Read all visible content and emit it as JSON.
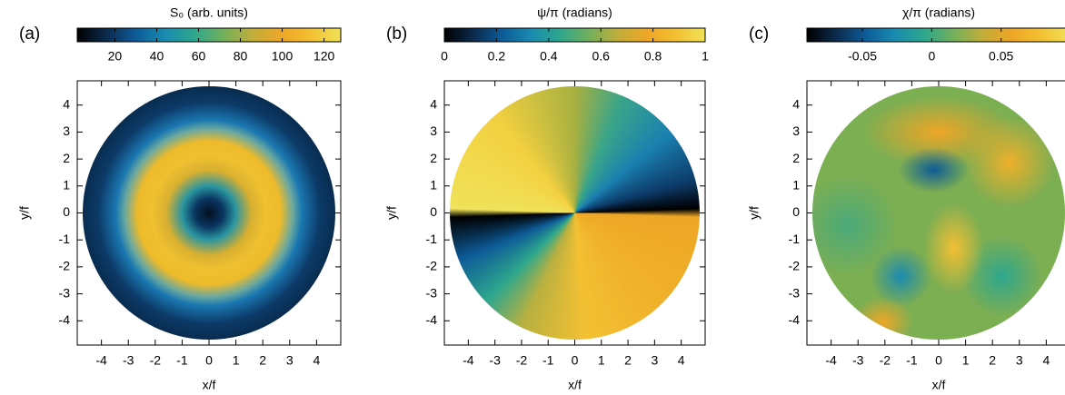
{
  "chart_data": [
    {
      "type": "heatmap",
      "image": "ring",
      "panel_label": "(a)",
      "colorbar_label": "S₀ (arb. units)",
      "clim": [
        2,
        128
      ],
      "cticks": [
        20,
        40,
        60,
        80,
        100,
        120
      ],
      "colormap": [
        "#000000",
        "#0b2a4c",
        "#0d5b97",
        "#1a8bb0",
        "#2ea78c",
        "#72b05c",
        "#c2ad3a",
        "#eea626",
        "#f3c033",
        "#f0e25a"
      ],
      "xlabel": "x/f",
      "ylabel": "y/f",
      "xlim": [
        -4.9,
        4.9
      ],
      "ylim": [
        -4.9,
        4.9
      ],
      "xticks": [
        -4,
        -3,
        -2,
        -1,
        0,
        1,
        2,
        3,
        4
      ],
      "yticks": [
        -4,
        -3,
        -2,
        -1,
        0,
        1,
        2,
        3,
        4
      ]
    },
    {
      "type": "heatmap",
      "image": "azimuth",
      "panel_label": "(b)",
      "colorbar_label": "ψ/π (radians)",
      "clim": [
        0,
        1
      ],
      "cticks": [
        0,
        0.2,
        0.4,
        0.6,
        0.8,
        1
      ],
      "colormap": [
        "#000000",
        "#0b2a4c",
        "#0d5b97",
        "#1a8bb0",
        "#2ea78c",
        "#72b05c",
        "#c2ad3a",
        "#eea626",
        "#f3c033",
        "#f0e25a"
      ],
      "xlabel": "x/f",
      "ylabel": "y/f",
      "xlim": [
        -4.9,
        4.9
      ],
      "ylim": [
        -4.9,
        4.9
      ],
      "xticks": [
        -4,
        -3,
        -2,
        -1,
        0,
        1,
        2,
        3,
        4
      ],
      "yticks": [
        -4,
        -3,
        -2,
        -1,
        0,
        1,
        2,
        3,
        4
      ]
    },
    {
      "type": "heatmap",
      "image": "patches",
      "panel_label": "(c)",
      "colorbar_label": "χ/π (radians)",
      "clim": [
        -0.09,
        0.1
      ],
      "cticks": [
        -0.05,
        0,
        0.05
      ],
      "colormap": [
        "#000000",
        "#0b2a4c",
        "#0d5b97",
        "#1a8bb0",
        "#2ea78c",
        "#72b05c",
        "#c2ad3a",
        "#eea626",
        "#f3c033",
        "#f0e25a"
      ],
      "xlabel": "x/f",
      "ylabel": "y/f",
      "xlim": [
        -4.9,
        4.9
      ],
      "ylim": [
        -4.9,
        4.9
      ],
      "xticks": [
        -4,
        -3,
        -2,
        -1,
        0,
        1,
        2,
        3,
        4
      ],
      "yticks": [
        -4,
        -3,
        -2,
        -1,
        0,
        1,
        2,
        3,
        4
      ]
    }
  ]
}
